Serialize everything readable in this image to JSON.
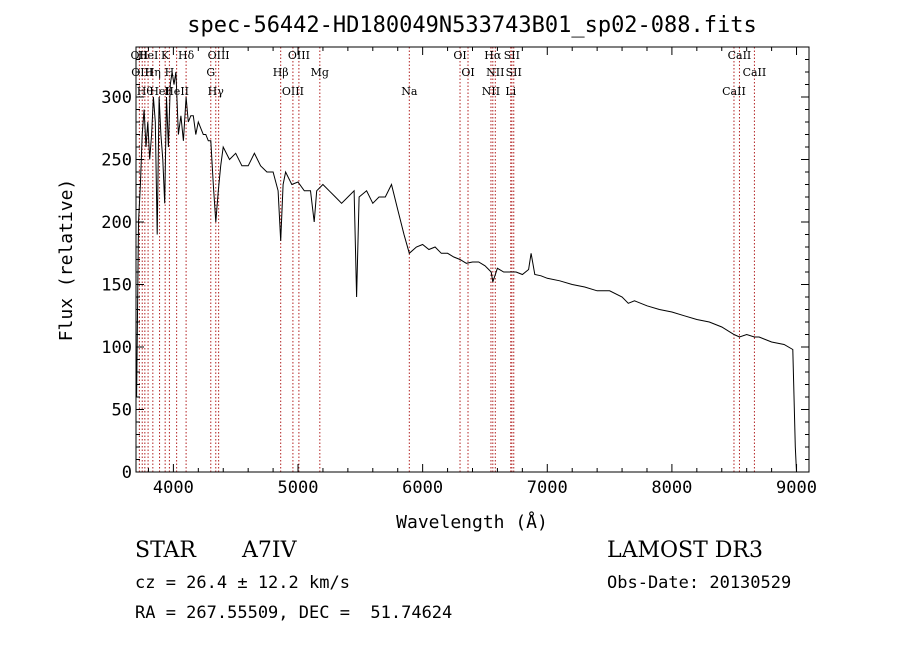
{
  "chart_data": {
    "type": "line",
    "title": "spec-56442-HD180049N533743B01_sp02-088.fits",
    "xlabel": "Wavelength (Å)",
    "ylabel": "Flux (relative)",
    "xlim": [
      3700,
      9100
    ],
    "ylim": [
      0,
      340
    ],
    "xticks": [
      4000,
      5000,
      6000,
      7000,
      8000,
      9000
    ],
    "yticks": [
      0,
      50,
      100,
      150,
      200,
      250,
      300
    ],
    "grid": false,
    "line_color": "#000000",
    "marker_color": "#b22222",
    "series": [
      {
        "x": [
          3705,
          3720,
          3735,
          3750,
          3765,
          3780,
          3795,
          3810,
          3825,
          3840,
          3855,
          3870,
          3885,
          3900,
          3915,
          3930,
          3945,
          3960,
          3975,
          3990,
          4005,
          4020,
          4040,
          4060,
          4080,
          4102,
          4120,
          4140,
          4160,
          4180,
          4200,
          4220,
          4240,
          4260,
          4280,
          4300,
          4320,
          4340,
          4360,
          4380,
          4400,
          4450,
          4500,
          4550,
          4600,
          4650,
          4700,
          4750,
          4800,
          4840,
          4861,
          4880,
          4900,
          4950,
          5000,
          5050,
          5100,
          5130,
          5150,
          5200,
          5250,
          5300,
          5350,
          5400,
          5450,
          5470,
          5490,
          5550,
          5600,
          5650,
          5700,
          5750,
          5800,
          5850,
          5893,
          5950,
          6000,
          6050,
          6100,
          6150,
          6200,
          6250,
          6300,
          6350,
          6400,
          6450,
          6500,
          6550,
          6563,
          6600,
          6650,
          6700,
          6750,
          6800,
          6850,
          6870,
          6900,
          6950,
          7000,
          7100,
          7200,
          7300,
          7400,
          7500,
          7600,
          7650,
          7700,
          7800,
          7900,
          8000,
          8100,
          8200,
          8300,
          8400,
          8498,
          8542,
          8600,
          8662,
          8700,
          8800,
          8900,
          8970,
          8990,
          9000
        ],
        "y": [
          60,
          200,
          230,
          270,
          290,
          260,
          280,
          250,
          270,
          300,
          280,
          190,
          300,
          270,
          250,
          215,
          300,
          260,
          310,
          320,
          310,
          320,
          270,
          285,
          265,
          300,
          280,
          285,
          285,
          270,
          280,
          275,
          270,
          270,
          265,
          265,
          230,
          200,
          225,
          245,
          260,
          250,
          255,
          245,
          245,
          255,
          245,
          240,
          240,
          225,
          185,
          230,
          240,
          230,
          232,
          225,
          225,
          200,
          225,
          230,
          225,
          220,
          215,
          220,
          225,
          140,
          220,
          225,
          215,
          220,
          220,
          230,
          210,
          190,
          175,
          180,
          182,
          178,
          180,
          175,
          175,
          172,
          170,
          167,
          168,
          168,
          165,
          160,
          152,
          163,
          160,
          160,
          160,
          158,
          162,
          175,
          158,
          157,
          155,
          153,
          150,
          148,
          145,
          145,
          140,
          135,
          137,
          133,
          130,
          128,
          125,
          122,
          120,
          116,
          110,
          108,
          110,
          108,
          108,
          104,
          102,
          98,
          20,
          0
        ]
      }
    ],
    "line_markers": [
      {
        "wl": 3727,
        "labels": [
          "OII"
        ]
      },
      {
        "wl": 3750,
        "labels": [
          "OIII"
        ]
      },
      {
        "wl": 3771,
        "labels": [
          "Hθ"
        ]
      },
      {
        "wl": 3797,
        "labels": [
          "HeI"
        ]
      },
      {
        "wl": 3835,
        "labels": [
          "Hη"
        ]
      },
      {
        "wl": 3889,
        "labels": [
          "HeI"
        ]
      },
      {
        "wl": 3934,
        "labels": [
          "K"
        ]
      },
      {
        "wl": 3968,
        "labels": [
          "H"
        ]
      },
      {
        "wl": 4026,
        "labels": [
          "HeII"
        ]
      },
      {
        "wl": 4102,
        "labels": [
          "Hδ"
        ]
      },
      {
        "wl": 4300,
        "labels": [
          "G"
        ]
      },
      {
        "wl": 4340,
        "labels": [
          "Hγ"
        ]
      },
      {
        "wl": 4363,
        "labels": [
          "OIII"
        ]
      },
      {
        "wl": 4861,
        "labels": [
          "Hβ"
        ]
      },
      {
        "wl": 4959,
        "labels": [
          "OIII"
        ]
      },
      {
        "wl": 5007,
        "labels": [
          "OIII"
        ]
      },
      {
        "wl": 5175,
        "labels": [
          "Mg"
        ]
      },
      {
        "wl": 5893,
        "labels": [
          "Na"
        ]
      },
      {
        "wl": 6300,
        "labels": [
          "OI"
        ]
      },
      {
        "wl": 6364,
        "labels": [
          "OI"
        ]
      },
      {
        "wl": 6548,
        "labels": [
          "NII"
        ]
      },
      {
        "wl": 6563,
        "labels": [
          "Hα"
        ]
      },
      {
        "wl": 6583,
        "labels": [
          "NII"
        ]
      },
      {
        "wl": 6707,
        "labels": [
          "Li"
        ]
      },
      {
        "wl": 6716,
        "labels": [
          "SII"
        ]
      },
      {
        "wl": 6731,
        "labels": [
          "SII"
        ]
      },
      {
        "wl": 8498,
        "labels": [
          "CaII"
        ]
      },
      {
        "wl": 8542,
        "labels": [
          "CaII"
        ]
      },
      {
        "wl": 8662,
        "labels": [
          "CaII"
        ]
      }
    ]
  },
  "info": {
    "object_type": "STAR",
    "spectral_class": "A7IV",
    "survey": "LAMOST DR3",
    "cz": "cz = 26.4 ± 12.2 km/s",
    "obs_date": "Obs-Date: 20130529",
    "coords": "RA = 267.55509, DEC =  51.74624"
  }
}
